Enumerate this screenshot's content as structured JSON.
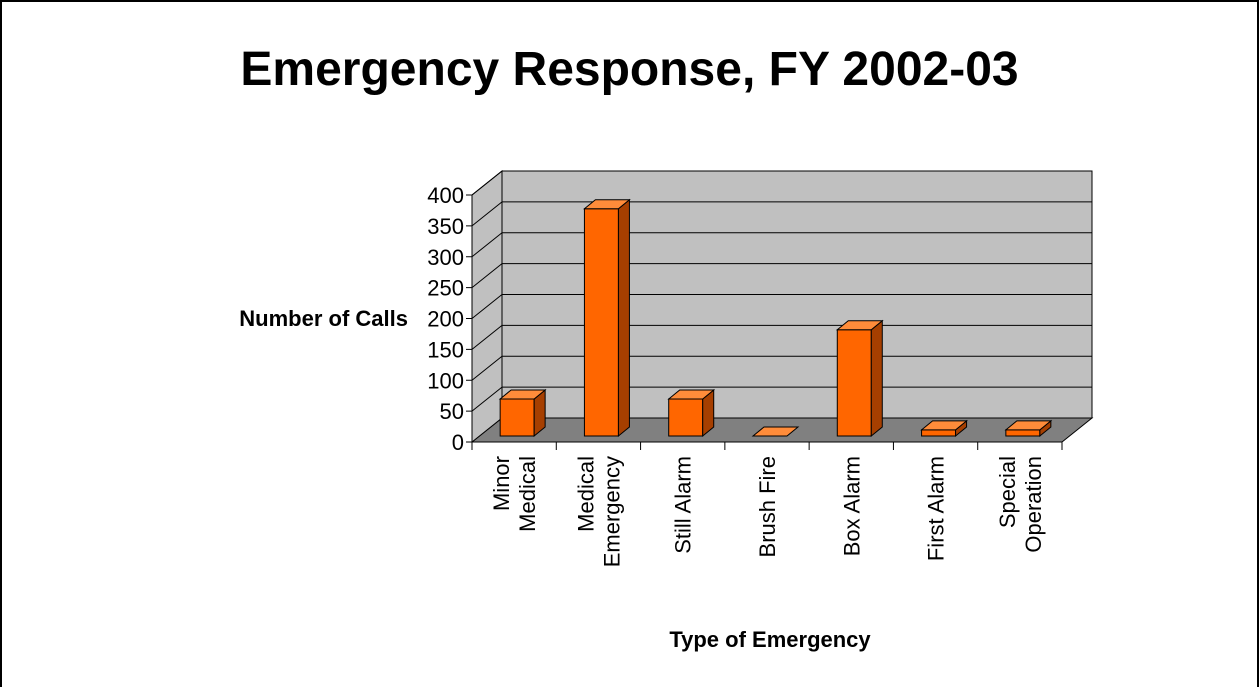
{
  "chart_data": {
    "type": "bar",
    "title": "Emergency Response, FY 2002-03",
    "xlabel": "Type of Emergency",
    "ylabel": "Number of Calls",
    "categories": [
      [
        "Minor",
        "Medical"
      ],
      [
        "Medical",
        "Emergency"
      ],
      [
        "Still Alarm"
      ],
      [
        "Brush Fire"
      ],
      [
        "Box Alarm"
      ],
      [
        "First Alarm"
      ],
      [
        "Special",
        "Operation"
      ]
    ],
    "values": [
      60,
      368,
      60,
      0,
      172,
      10,
      10
    ],
    "ylim": [
      0,
      400
    ],
    "yticks": [
      0,
      50,
      100,
      150,
      200,
      250,
      300,
      350,
      400
    ],
    "grid": true,
    "legend": "none",
    "colors": {
      "bar_front": "#FF6600",
      "bar_top": "#FF8C3A",
      "bar_side": "#A63F00",
      "wall": "#C0C0C0",
      "floor": "#808080"
    }
  }
}
